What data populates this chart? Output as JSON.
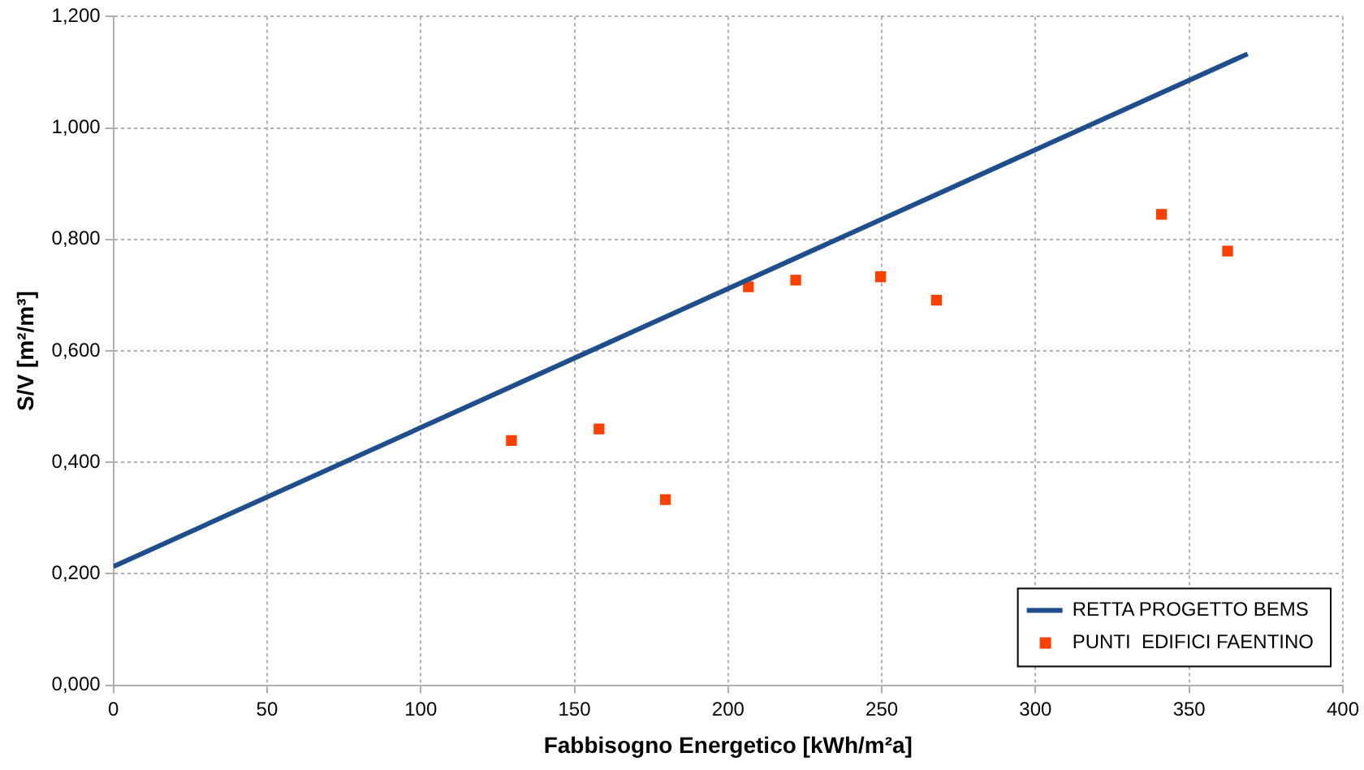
{
  "chart_data": {
    "type": "scatter",
    "xlabel": "Fabbisogno Energetico [kWh/m²a]",
    "ylabel": "S/V [m²/m³]",
    "xlim": [
      0,
      400
    ],
    "xticks": [
      0,
      50,
      100,
      150,
      200,
      250,
      300,
      350,
      400
    ],
    "ylim": [
      0,
      1.2
    ],
    "yticks": [
      {
        "value": 0,
        "label": "0,000"
      },
      {
        "value": 0.2,
        "label": "0,200"
      },
      {
        "value": 0.4,
        "label": "0,400"
      },
      {
        "value": 0.6,
        "label": "0,600"
      },
      {
        "value": 0.8,
        "label": "0,800"
      },
      {
        "value": 1.0,
        "label": "1,000"
      },
      {
        "value": 1.2,
        "label": "1,200"
      }
    ],
    "grid": true,
    "legend": "bottom right",
    "series": [
      {
        "name": "RETTA PROGETTO BEMS",
        "type": "line",
        "color": "#1f4e8c",
        "marker": "none",
        "x": [
          0,
          369
        ],
        "values": [
          0.213,
          1.133
        ]
      },
      {
        "name": "PUNTI  EDIFICI FAENTINO",
        "type": "scatter",
        "color": "#ff4000",
        "marker": "square",
        "x": [
          129.5,
          158,
          179.6,
          206.6,
          222,
          249.6,
          267.8,
          341,
          362.5
        ],
        "values": [
          0.439,
          0.46,
          0.333,
          0.715,
          0.727,
          0.733,
          0.691,
          0.845,
          0.779
        ]
      }
    ]
  }
}
